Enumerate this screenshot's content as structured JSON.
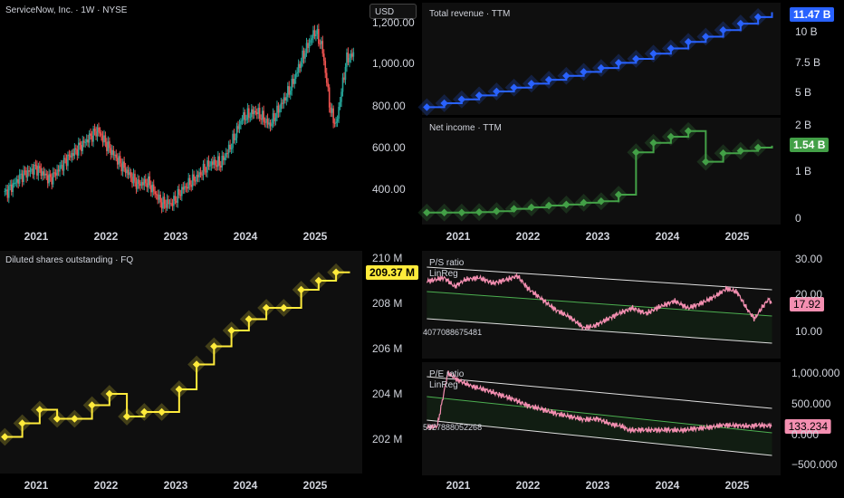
{
  "price": {
    "title": "ServiceNow, Inc. · 1W · NYSE",
    "currency": "USD",
    "yticks": [
      "1,200.00",
      "1,000.00",
      "800.00",
      "600.00",
      "400.00"
    ],
    "xticks": [
      "2021",
      "2022",
      "2023",
      "2024",
      "2025"
    ]
  },
  "revenue": {
    "title": "Total revenue · TTM",
    "last": "11.47 B",
    "yticks": [
      "10 B",
      "7.5 B",
      "5 B"
    ],
    "color": "#2962ff"
  },
  "income": {
    "title": "Net income · TTM",
    "last": "1.54 B",
    "yticks": [
      "2 B",
      "1 B",
      "0"
    ],
    "color": "#43a047"
  },
  "shares": {
    "title": "Diluted shares outstanding · FQ",
    "last": "209.37 M",
    "yticks": [
      "210 M",
      "208 M",
      "206 M",
      "204 M",
      "202 M"
    ],
    "xticks": [
      "2021",
      "2022",
      "2023",
      "2024",
      "2025"
    ],
    "color": "#ffeb3b"
  },
  "ps": {
    "title": "P/S ratio",
    "sub": "LinReg",
    "code": "4077088675481",
    "last": "17.92",
    "yticks": [
      "30.00",
      "20.00",
      "10.00"
    ],
    "color": "#f48fb1"
  },
  "pe": {
    "title": "P/E ratio",
    "sub": "LinReg",
    "code": "5927888052268",
    "last": "133.234",
    "yticks": [
      "1,000.000",
      "500.000",
      "0.000",
      "−500.000"
    ],
    "xticks": [
      "2021",
      "2022",
      "2023",
      "2024",
      "2025"
    ],
    "color": "#f48fb1"
  },
  "chart_data": [
    {
      "type": "line",
      "title": "ServiceNow, Inc. · 1W · NYSE",
      "series": [
        {
          "values": [
            [
              2020.55,
              430
            ],
            [
              2020.8,
              510
            ],
            [
              2021.0,
              540
            ],
            [
              2021.2,
              490
            ],
            [
              2021.45,
              580
            ],
            [
              2021.7,
              650
            ],
            [
              2021.88,
              700
            ],
            [
              2022.05,
              620
            ],
            [
              2022.2,
              560
            ],
            [
              2022.45,
              470
            ],
            [
              2022.6,
              480
            ],
            [
              2022.8,
              390
            ],
            [
              2022.95,
              390
            ],
            [
              2023.1,
              450
            ],
            [
              2023.3,
              500
            ],
            [
              2023.5,
              560
            ],
            [
              2023.65,
              560
            ],
            [
              2023.8,
              640
            ],
            [
              2023.95,
              750
            ],
            [
              2024.15,
              780
            ],
            [
              2024.35,
              720
            ],
            [
              2024.5,
              800
            ],
            [
              2024.65,
              880
            ],
            [
              2024.85,
              1030
            ],
            [
              2025.0,
              1120
            ],
            [
              2025.1,
              1050
            ],
            [
              2025.22,
              780
            ],
            [
              2025.3,
              720
            ],
            [
              2025.45,
              1000
            ],
            [
              2025.55,
              1020
            ]
          ]
        }
      ],
      "ylim": [
        300,
        1250
      ]
    },
    {
      "type": "line",
      "title": "Total revenue · TTM",
      "series": [
        {
          "values": [
            [
              2020.55,
              4.2
            ],
            [
              2020.8,
              4.5
            ],
            [
              2021.05,
              4.8
            ],
            [
              2021.3,
              5.1
            ],
            [
              2021.55,
              5.4
            ],
            [
              2021.8,
              5.7
            ],
            [
              2022.05,
              6.0
            ],
            [
              2022.3,
              6.3
            ],
            [
              2022.55,
              6.6
            ],
            [
              2022.8,
              6.9
            ],
            [
              2023.05,
              7.2
            ],
            [
              2023.3,
              7.6
            ],
            [
              2023.55,
              7.9
            ],
            [
              2023.8,
              8.3
            ],
            [
              2024.05,
              8.7
            ],
            [
              2024.3,
              9.2
            ],
            [
              2024.55,
              9.6
            ],
            [
              2024.8,
              10.1
            ],
            [
              2025.05,
              10.6
            ],
            [
              2025.3,
              11.1
            ],
            [
              2025.5,
              11.47
            ]
          ]
        }
      ]
    },
    {
      "type": "line",
      "title": "Net income · TTM",
      "series": [
        {
          "values": [
            [
              2020.55,
              0.12
            ],
            [
              2020.8,
              0.12
            ],
            [
              2021.05,
              0.12
            ],
            [
              2021.3,
              0.13
            ],
            [
              2021.55,
              0.15
            ],
            [
              2021.8,
              0.2
            ],
            [
              2022.05,
              0.23
            ],
            [
              2022.3,
              0.27
            ],
            [
              2022.55,
              0.29
            ],
            [
              2022.8,
              0.33
            ],
            [
              2023.05,
              0.36
            ],
            [
              2023.3,
              0.5
            ],
            [
              2023.55,
              1.4
            ],
            [
              2023.8,
              1.6
            ],
            [
              2024.05,
              1.73
            ],
            [
              2024.3,
              1.85
            ],
            [
              2024.55,
              1.2
            ],
            [
              2024.8,
              1.38
            ],
            [
              2025.05,
              1.43
            ],
            [
              2025.3,
              1.5
            ],
            [
              2025.5,
              1.54
            ]
          ]
        }
      ]
    },
    {
      "type": "line",
      "title": "Diluted shares outstanding · FQ",
      "series": [
        {
          "values": [
            [
              2020.55,
              202.1
            ],
            [
              2020.8,
              202.7
            ],
            [
              2021.05,
              203.3
            ],
            [
              2021.3,
              202.9
            ],
            [
              2021.55,
              202.9
            ],
            [
              2021.8,
              203.5
            ],
            [
              2022.05,
              204.0
            ],
            [
              2022.3,
              203.0
            ],
            [
              2022.55,
              203.2
            ],
            [
              2022.8,
              203.2
            ],
            [
              2023.05,
              204.2
            ],
            [
              2023.3,
              205.3
            ],
            [
              2023.55,
              206.1
            ],
            [
              2023.8,
              206.8
            ],
            [
              2024.05,
              207.3
            ],
            [
              2024.3,
              207.8
            ],
            [
              2024.55,
              207.8
            ],
            [
              2024.8,
              208.6
            ],
            [
              2025.05,
              209.0
            ],
            [
              2025.3,
              209.37
            ],
            [
              2025.5,
              209.37
            ]
          ]
        }
      ]
    },
    {
      "type": "line",
      "title": "P/S ratio",
      "series": [
        {
          "values": [
            [
              2020.55,
              24
            ],
            [
              2020.8,
              25
            ],
            [
              2020.95,
              22.5
            ],
            [
              2021.1,
              24.5
            ],
            [
              2021.3,
              25
            ],
            [
              2021.5,
              23.5
            ],
            [
              2021.7,
              24.5
            ],
            [
              2021.85,
              25.5
            ],
            [
              2022.0,
              22
            ],
            [
              2022.2,
              19
            ],
            [
              2022.4,
              16
            ],
            [
              2022.6,
              14
            ],
            [
              2022.8,
              11
            ],
            [
              2022.95,
              11.5
            ],
            [
              2023.1,
              13
            ],
            [
              2023.3,
              15
            ],
            [
              2023.5,
              16.5
            ],
            [
              2023.7,
              15
            ],
            [
              2023.9,
              17
            ],
            [
              2024.1,
              18.5
            ],
            [
              2024.3,
              16.5
            ],
            [
              2024.5,
              18
            ],
            [
              2024.7,
              20
            ],
            [
              2024.85,
              22
            ],
            [
              2025.0,
              21
            ],
            [
              2025.15,
              16
            ],
            [
              2025.25,
              13.5
            ],
            [
              2025.35,
              16.5
            ],
            [
              2025.45,
              19
            ],
            [
              2025.5,
              17.92
            ]
          ]
        }
      ],
      "ylim": [
        5,
        32
      ]
    },
    {
      "type": "line",
      "title": "P/E ratio",
      "series": [
        {
          "values": [
            [
              2020.55,
              100
            ],
            [
              2020.7,
              120
            ],
            [
              2020.85,
              1000
            ],
            [
              2021.0,
              880
            ],
            [
              2021.2,
              780
            ],
            [
              2021.4,
              720
            ],
            [
              2021.6,
              640
            ],
            [
              2021.8,
              560
            ],
            [
              2022.0,
              460
            ],
            [
              2022.2,
              400
            ],
            [
              2022.4,
              330
            ],
            [
              2022.6,
              280
            ],
            [
              2022.8,
              230
            ],
            [
              2023.0,
              240
            ],
            [
              2023.2,
              150
            ],
            [
              2023.35,
              120
            ],
            [
              2023.45,
              50
            ],
            [
              2023.6,
              60
            ],
            [
              2023.8,
              55
            ],
            [
              2024.0,
              60
            ],
            [
              2024.2,
              50
            ],
            [
              2024.4,
              80
            ],
            [
              2024.6,
              100
            ],
            [
              2024.8,
              140
            ],
            [
              2025.0,
              130
            ],
            [
              2025.2,
              120
            ],
            [
              2025.3,
              140
            ],
            [
              2025.4,
              125
            ],
            [
              2025.5,
              133.234
            ]
          ]
        }
      ],
      "ylim": [
        -600,
        1150
      ]
    }
  ]
}
